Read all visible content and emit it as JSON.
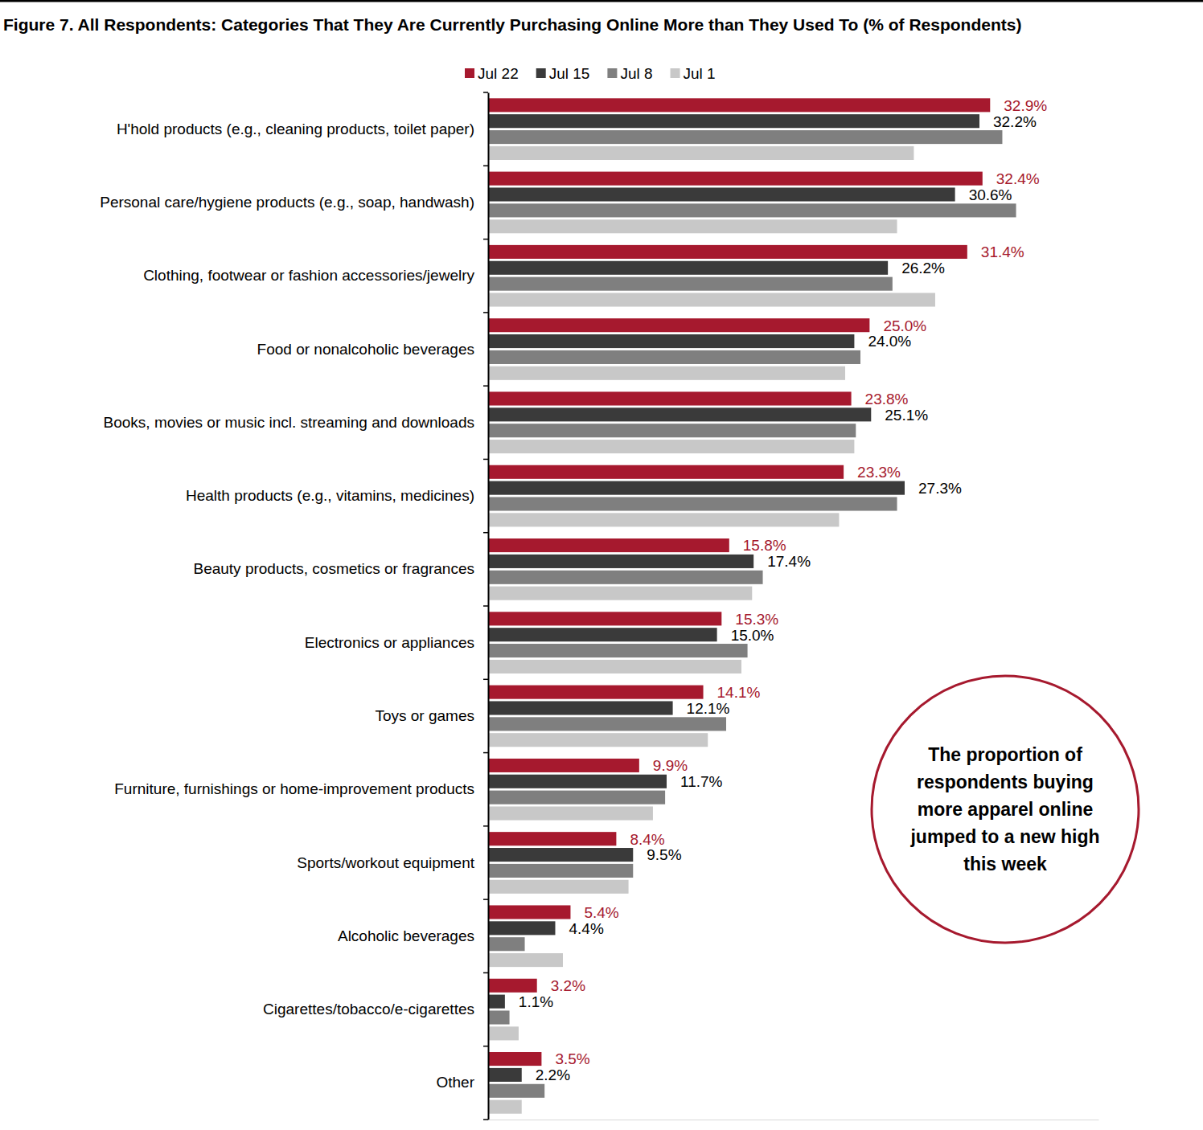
{
  "chart_data": {
    "type": "bar",
    "orientation": "horizontal",
    "title": "Figure 7. All Respondents: Categories That They Are Currently Purchasing Online More than They Used To (% of Respondents)",
    "categories": [
      "H'hold products (e.g., cleaning products, toilet paper)",
      "Personal care/hygiene products (e.g., soap, handwash)",
      "Clothing, footwear or fashion accessories/jewelry",
      "Food or nonalcoholic beverages",
      "Books, movies or music incl. streaming and downloads",
      "Health products (e.g., vitamins, medicines)",
      "Beauty products, cosmetics or fragrances",
      "Electronics or appliances",
      "Toys or games",
      "Furniture, furnishings or home-improvement products",
      "Sports/workout equipment",
      "Alcoholic beverages",
      "Cigarettes/tobacco/e-cigarettes",
      "Other"
    ],
    "series": [
      {
        "name": "Jul 22",
        "color": "#a6192e",
        "data_labels": true,
        "values": [
          32.9,
          32.4,
          31.4,
          25.0,
          23.8,
          23.3,
          15.8,
          15.3,
          14.1,
          9.9,
          8.4,
          5.4,
          3.2,
          3.5
        ],
        "value_labels": [
          "32.9%",
          "32.4%",
          "31.4%",
          "25.0%",
          "23.8%",
          "23.3%",
          "15.8%",
          "15.3%",
          "14.1%",
          "9.9%",
          "8.4%",
          "5.4%",
          "3.2%",
          "3.5%"
        ]
      },
      {
        "name": "Jul 15",
        "color": "#3a3a3a",
        "data_labels": true,
        "values": [
          32.2,
          30.6,
          26.2,
          24.0,
          25.1,
          27.3,
          17.4,
          15.0,
          12.1,
          11.7,
          9.5,
          4.4,
          1.1,
          2.2
        ],
        "value_labels": [
          "32.2%",
          "30.6%",
          "26.2%",
          "24.0%",
          "25.1%",
          "27.3%",
          "17.4%",
          "15.0%",
          "12.1%",
          "11.7%",
          "9.5%",
          "4.4%",
          "1.1%",
          "2.2%"
        ]
      },
      {
        "name": "Jul 8",
        "color": "#7f7f7f",
        "values": [
          33.7,
          34.6,
          26.5,
          24.4,
          24.1,
          26.8,
          18.0,
          17.0,
          15.6,
          11.6,
          9.5,
          2.4,
          1.4,
          3.7
        ]
      },
      {
        "name": "Jul 1",
        "color": "#c8c8c8",
        "values": [
          27.9,
          26.8,
          29.3,
          23.4,
          24.0,
          23.0,
          17.3,
          16.6,
          14.4,
          10.8,
          9.2,
          4.9,
          2.0,
          2.2
        ]
      }
    ],
    "xlim": [
      0,
      40
    ],
    "tick_labels": "y",
    "legend": "top",
    "annotation": "The proportion of respondents buying more apparel online jumped to a new high this week"
  }
}
